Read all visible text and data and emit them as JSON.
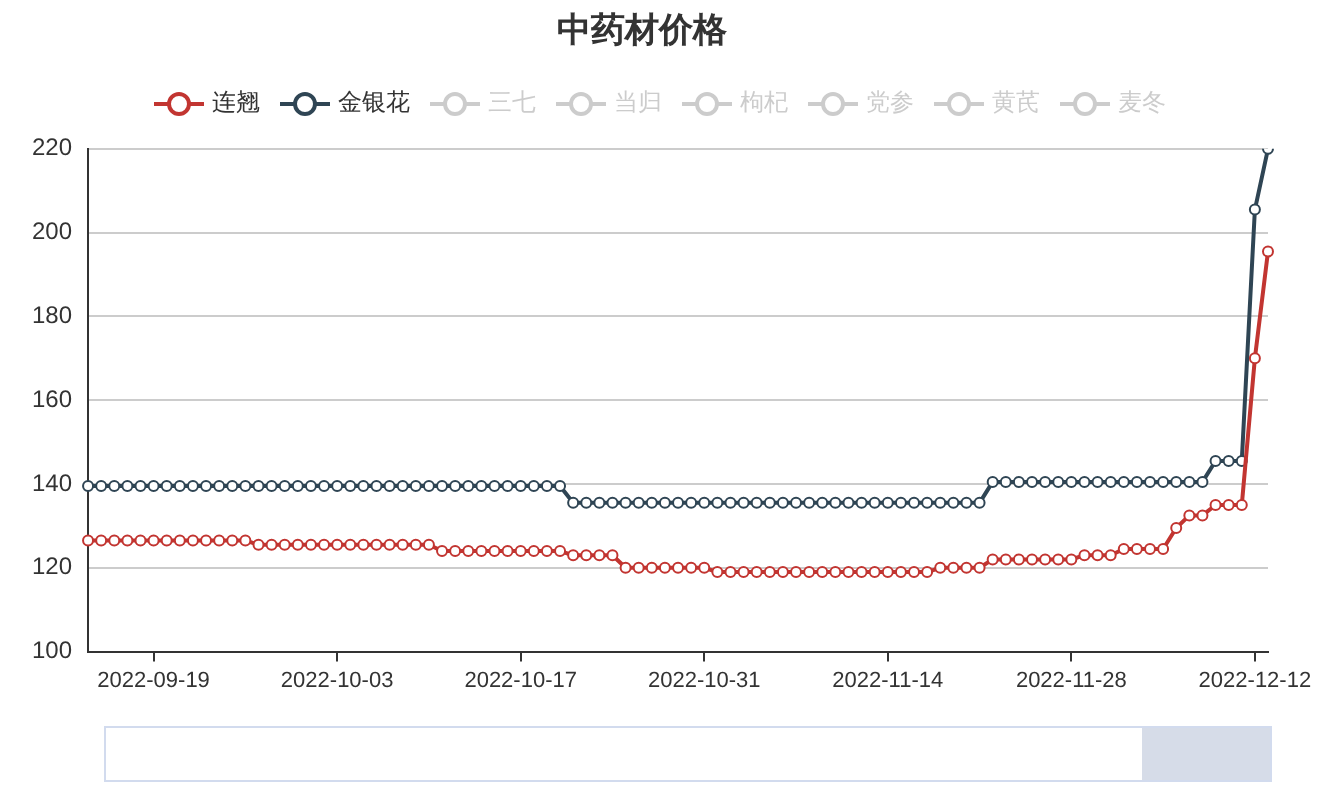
{
  "chart_data": {
    "type": "line",
    "title": "中药材价格",
    "categories": [
      null,
      null,
      null,
      null,
      null,
      "2022-09-19",
      null,
      null,
      null,
      null,
      null,
      null,
      null,
      null,
      null,
      null,
      null,
      null,
      null,
      "2022-10-03",
      null,
      null,
      null,
      null,
      null,
      null,
      null,
      null,
      null,
      null,
      null,
      null,
      null,
      "2022-10-17",
      null,
      null,
      null,
      null,
      null,
      null,
      null,
      null,
      null,
      null,
      null,
      null,
      null,
      "2022-10-31",
      null,
      null,
      null,
      null,
      null,
      null,
      null,
      null,
      null,
      null,
      null,
      null,
      null,
      "2022-11-14",
      null,
      null,
      null,
      null,
      null,
      null,
      null,
      null,
      null,
      null,
      null,
      null,
      null,
      "2022-11-28",
      null,
      null,
      null,
      null,
      null,
      null,
      null,
      null,
      null,
      null,
      null,
      null,
      null,
      "2022-12-12",
      null
    ],
    "series": [
      {
        "name": "连翘",
        "color": "#c23531",
        "values": [
          126.5,
          126.5,
          126.5,
          126.5,
          126.5,
          126.5,
          126.5,
          126.5,
          126.5,
          126.5,
          126.5,
          126.5,
          126.5,
          125.5,
          125.5,
          125.5,
          125.5,
          125.5,
          125.5,
          125.5,
          125.5,
          125.5,
          125.5,
          125.5,
          125.5,
          125.5,
          125.5,
          124,
          124,
          124,
          124,
          124,
          124,
          124,
          124,
          124,
          124,
          123,
          123,
          123,
          123,
          120,
          120,
          120,
          120,
          120,
          120,
          120,
          119,
          119,
          119,
          119,
          119,
          119,
          119,
          119,
          119,
          119,
          119,
          119,
          119,
          119,
          119,
          119,
          119,
          120,
          120,
          120,
          120,
          122,
          122,
          122,
          122,
          122,
          122,
          122,
          123,
          123,
          123,
          124.5,
          124.5,
          124.5,
          124.5,
          129.5,
          132.5,
          132.5,
          135,
          135,
          135,
          170,
          195.5
        ]
      },
      {
        "name": "金银花",
        "color": "#2f4554",
        "values": [
          139.5,
          139.5,
          139.5,
          139.5,
          139.5,
          139.5,
          139.5,
          139.5,
          139.5,
          139.5,
          139.5,
          139.5,
          139.5,
          139.5,
          139.5,
          139.5,
          139.5,
          139.5,
          139.5,
          139.5,
          139.5,
          139.5,
          139.5,
          139.5,
          139.5,
          139.5,
          139.5,
          139.5,
          139.5,
          139.5,
          139.5,
          139.5,
          139.5,
          139.5,
          139.5,
          139.5,
          139.5,
          135.5,
          135.5,
          135.5,
          135.5,
          135.5,
          135.5,
          135.5,
          135.5,
          135.5,
          135.5,
          135.5,
          135.5,
          135.5,
          135.5,
          135.5,
          135.5,
          135.5,
          135.5,
          135.5,
          135.5,
          135.5,
          135.5,
          135.5,
          135.5,
          135.5,
          135.5,
          135.5,
          135.5,
          135.5,
          135.5,
          135.5,
          135.5,
          140.5,
          140.5,
          140.5,
          140.5,
          140.5,
          140.5,
          140.5,
          140.5,
          140.5,
          140.5,
          140.5,
          140.5,
          140.5,
          140.5,
          140.5,
          140.5,
          140.5,
          145.5,
          145.5,
          145.5,
          205.5,
          220
        ]
      },
      {
        "name": "三七",
        "color": "#cccccc",
        "values": [
          null,
          null,
          null,
          null,
          null,
          null,
          null,
          null,
          null,
          null,
          null,
          null,
          null,
          null,
          null,
          null,
          null,
          null,
          null,
          null,
          null,
          null,
          null,
          null,
          null,
          null,
          null,
          null,
          null,
          null,
          null,
          null,
          null,
          null,
          null,
          null,
          null,
          null,
          null,
          null,
          null,
          null,
          null,
          null,
          null,
          null,
          null,
          null,
          null,
          null,
          null,
          null,
          null,
          null,
          null,
          null,
          null,
          null,
          null,
          null,
          null,
          null,
          null,
          null,
          null,
          null,
          null,
          null,
          null,
          null,
          null,
          null,
          null,
          null,
          null,
          null,
          null,
          null,
          null,
          null,
          null,
          null,
          null,
          null,
          null,
          null,
          null,
          null,
          null,
          null,
          null
        ]
      },
      {
        "name": "当归",
        "color": "#cccccc",
        "values": [
          null,
          null,
          null,
          null,
          null,
          null,
          null,
          null,
          null,
          null,
          null,
          null,
          null,
          null,
          null,
          null,
          null,
          null,
          null,
          null,
          null,
          null,
          null,
          null,
          null,
          null,
          null,
          null,
          null,
          null,
          null,
          null,
          null,
          null,
          null,
          null,
          null,
          null,
          null,
          null,
          null,
          null,
          null,
          null,
          null,
          null,
          null,
          null,
          null,
          null,
          null,
          null,
          null,
          null,
          null,
          null,
          null,
          null,
          null,
          null,
          null,
          null,
          null,
          null,
          null,
          null,
          null,
          null,
          null,
          null,
          null,
          null,
          null,
          null,
          null,
          null,
          null,
          null,
          null,
          null,
          null,
          null,
          null,
          null,
          null,
          null,
          null,
          null,
          null,
          null,
          null
        ]
      },
      {
        "name": "枸杞",
        "color": "#cccccc",
        "values": [
          null,
          null,
          null,
          null,
          null,
          null,
          null,
          null,
          null,
          null,
          null,
          null,
          null,
          null,
          null,
          null,
          null,
          null,
          null,
          null,
          null,
          null,
          null,
          null,
          null,
          null,
          null,
          null,
          null,
          null,
          null,
          null,
          null,
          null,
          null,
          null,
          null,
          null,
          null,
          null,
          null,
          null,
          null,
          null,
          null,
          null,
          null,
          null,
          null,
          null,
          null,
          null,
          null,
          null,
          null,
          null,
          null,
          null,
          null,
          null,
          null,
          null,
          null,
          null,
          null,
          null,
          null,
          null,
          null,
          null,
          null,
          null,
          null,
          null,
          null,
          null,
          null,
          null,
          null,
          null,
          null,
          null,
          null,
          null,
          null,
          null,
          null,
          null,
          null,
          null,
          null
        ]
      },
      {
        "name": "党参",
        "color": "#cccccc",
        "values": [
          null,
          null,
          null,
          null,
          null,
          null,
          null,
          null,
          null,
          null,
          null,
          null,
          null,
          null,
          null,
          null,
          null,
          null,
          null,
          null,
          null,
          null,
          null,
          null,
          null,
          null,
          null,
          null,
          null,
          null,
          null,
          null,
          null,
          null,
          null,
          null,
          null,
          null,
          null,
          null,
          null,
          null,
          null,
          null,
          null,
          null,
          null,
          null,
          null,
          null,
          null,
          null,
          null,
          null,
          null,
          null,
          null,
          null,
          null,
          null,
          null,
          null,
          null,
          null,
          null,
          null,
          null,
          null,
          null,
          null,
          null,
          null,
          null,
          null,
          null,
          null,
          null,
          null,
          null,
          null,
          null,
          null,
          null,
          null,
          null,
          null,
          null,
          null,
          null,
          null,
          null
        ]
      },
      {
        "name": "黄芪",
        "color": "#cccccc",
        "values": [
          null,
          null,
          null,
          null,
          null,
          null,
          null,
          null,
          null,
          null,
          null,
          null,
          null,
          null,
          null,
          null,
          null,
          null,
          null,
          null,
          null,
          null,
          null,
          null,
          null,
          null,
          null,
          null,
          null,
          null,
          null,
          null,
          null,
          null,
          null,
          null,
          null,
          null,
          null,
          null,
          null,
          null,
          null,
          null,
          null,
          null,
          null,
          null,
          null,
          null,
          null,
          null,
          null,
          null,
          null,
          null,
          null,
          null,
          null,
          null,
          null,
          null,
          null,
          null,
          null,
          null,
          null,
          null,
          null,
          null,
          null,
          null,
          null,
          null,
          null,
          null,
          null,
          null,
          null,
          null,
          null,
          null,
          null,
          null,
          null,
          null,
          null,
          null,
          null,
          null,
          null
        ]
      },
      {
        "name": "麦冬",
        "color": "#cccccc",
        "values": [
          null,
          null,
          null,
          null,
          null,
          null,
          null,
          null,
          null,
          null,
          null,
          null,
          null,
          null,
          null,
          null,
          null,
          null,
          null,
          null,
          null,
          null,
          null,
          null,
          null,
          null,
          null,
          null,
          null,
          null,
          null,
          null,
          null,
          null,
          null,
          null,
          null,
          null,
          null,
          null,
          null,
          null,
          null,
          null,
          null,
          null,
          null,
          null,
          null,
          null,
          null,
          null,
          null,
          null,
          null,
          null,
          null,
          null,
          null,
          null,
          null,
          null,
          null,
          null,
          null,
          null,
          null,
          null,
          null,
          null,
          null,
          null,
          null,
          null,
          null,
          null,
          null,
          null,
          null,
          null,
          null,
          null,
          null,
          null,
          null,
          null,
          null,
          null,
          null,
          null,
          null
        ]
      }
    ],
    "ylim": [
      100,
      220
    ],
    "yticks": [
      100,
      120,
      140,
      160,
      180,
      200,
      220
    ],
    "grid": "y",
    "legend": "top",
    "marker": "circle",
    "line_style": "solid"
  }
}
